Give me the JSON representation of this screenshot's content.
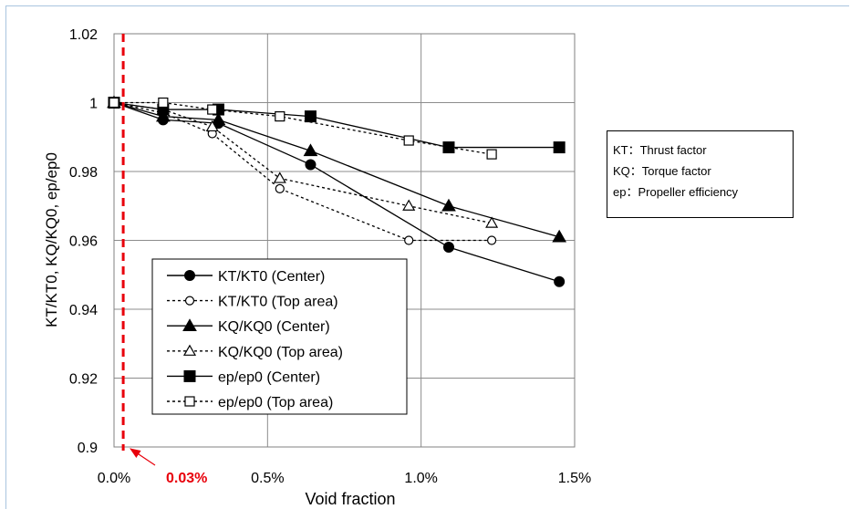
{
  "chart_data": {
    "type": "line",
    "xlabel": "Void fraction",
    "ylabel": "KT/KT0, KQ/KQ0, ep/ep0",
    "xlim": [
      0,
      1.5
    ],
    "ylim": [
      0.9,
      1.02
    ],
    "x_ticks": [
      "0.0%",
      "0.5%",
      "1.0%",
      "1.5%"
    ],
    "y_ticks": [
      "0.9",
      "0.92",
      "0.94",
      "0.96",
      "0.98",
      "1",
      "1.02"
    ],
    "grid": true,
    "legend_position": "bottom-left inside plot",
    "series": [
      {
        "name": "KT/KT0 (Center)",
        "style": "solid",
        "marker": "filled-circle",
        "x": [
          0,
          0.16,
          0.34,
          0.64,
          1.09,
          1.45
        ],
        "y": [
          1.0,
          0.995,
          0.994,
          0.982,
          0.958,
          0.948
        ]
      },
      {
        "name": "KT/KT0 (Top area)",
        "style": "dotted",
        "marker": "open-circle",
        "x": [
          0,
          0.16,
          0.32,
          0.54,
          0.96,
          1.23
        ],
        "y": [
          1.0,
          0.997,
          0.991,
          0.975,
          0.96,
          0.96
        ]
      },
      {
        "name": "KQ/KQ0 (Center)",
        "style": "solid",
        "marker": "filled-triangle",
        "x": [
          0,
          0.16,
          0.34,
          0.64,
          1.09,
          1.45
        ],
        "y": [
          1.0,
          0.996,
          0.995,
          0.986,
          0.97,
          0.961
        ]
      },
      {
        "name": "KQ/KQ0 (Top area)",
        "style": "dotted",
        "marker": "open-triangle",
        "x": [
          0,
          0.16,
          0.32,
          0.54,
          0.96,
          1.23
        ],
        "y": [
          1.0,
          0.998,
          0.993,
          0.978,
          0.97,
          0.965
        ]
      },
      {
        "name": "ep/ep0 (Center)",
        "style": "solid",
        "marker": "filled-square",
        "x": [
          0,
          0.16,
          0.34,
          0.64,
          1.09,
          1.45
        ],
        "y": [
          1.0,
          0.998,
          0.998,
          0.996,
          0.987,
          0.987
        ]
      },
      {
        "name": "ep/ep0 (Top area)",
        "style": "dotted",
        "marker": "open-square",
        "x": [
          0,
          0.16,
          0.32,
          0.54,
          0.96,
          1.23
        ],
        "y": [
          1.0,
          1.0,
          0.998,
          0.996,
          0.989,
          0.985
        ]
      }
    ],
    "annotations": [
      {
        "text": "0.03%",
        "x": 0.03,
        "color": "#e8000b",
        "kind": "vertical-dashed-line"
      }
    ]
  },
  "notes": [
    "KT：Thrust factor",
    "KQ：Torque factor",
    "ep：Propeller efficiency"
  ]
}
